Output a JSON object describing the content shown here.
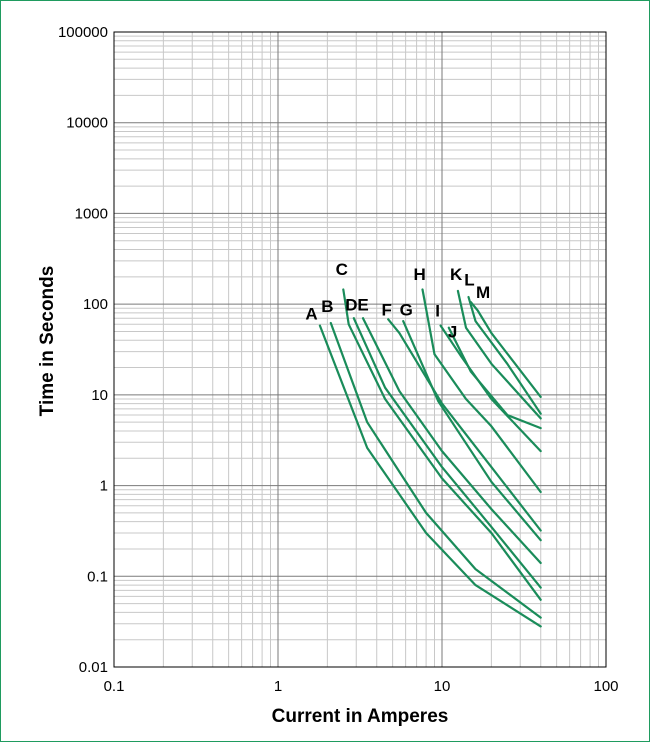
{
  "chart_data": {
    "type": "line",
    "title": "",
    "xlabel": "Current in Amperes",
    "ylabel": "Time in Seconds",
    "x_scale": "log",
    "y_scale": "log",
    "xlim": [
      0.1,
      100
    ],
    "ylim": [
      0.01,
      100000
    ],
    "x_ticks": [
      {
        "value": 0.1,
        "label": "0.1"
      },
      {
        "value": 1,
        "label": "1"
      },
      {
        "value": 10,
        "label": "10"
      },
      {
        "value": 100,
        "label": "100"
      }
    ],
    "y_ticks": [
      {
        "value": 0.01,
        "label": "0.01"
      },
      {
        "value": 0.1,
        "label": "0.1"
      },
      {
        "value": 1,
        "label": "1"
      },
      {
        "value": 10,
        "label": "10"
      },
      {
        "value": 100,
        "label": "100"
      },
      {
        "value": 1000,
        "label": "1000"
      },
      {
        "value": 10000,
        "label": "10000"
      },
      {
        "value": 100000,
        "label": "100000"
      }
    ],
    "grid": true,
    "line_color": "#1a8c5a",
    "series": [
      {
        "name": "A",
        "points": [
          [
            1.8,
            58
          ],
          [
            3.5,
            2.6
          ],
          [
            8,
            0.3
          ],
          [
            16,
            0.08
          ],
          [
            40,
            0.028
          ]
        ]
      },
      {
        "name": "B",
        "points": [
          [
            2.1,
            62
          ],
          [
            3.5,
            5
          ],
          [
            8,
            0.5
          ],
          [
            16,
            0.12
          ],
          [
            40,
            0.035
          ]
        ]
      },
      {
        "name": "C",
        "points": [
          [
            2.5,
            145
          ],
          [
            2.7,
            60
          ],
          [
            4.5,
            9
          ],
          [
            10,
            1.2
          ],
          [
            20,
            0.3
          ],
          [
            40,
            0.055
          ]
        ]
      },
      {
        "name": "D",
        "points": [
          [
            2.9,
            70
          ],
          [
            4.5,
            12
          ],
          [
            10,
            1.6
          ],
          [
            20,
            0.35
          ],
          [
            40,
            0.075
          ]
        ]
      },
      {
        "name": "E",
        "points": [
          [
            3.3,
            70
          ],
          [
            5.5,
            11
          ],
          [
            10,
            2.4
          ],
          [
            20,
            0.55
          ],
          [
            40,
            0.14
          ]
        ]
      },
      {
        "name": "F",
        "points": [
          [
            4.7,
            68
          ],
          [
            5.5,
            48
          ],
          [
            10,
            8
          ],
          [
            20,
            1.6
          ],
          [
            40,
            0.32
          ]
        ]
      },
      {
        "name": "G",
        "points": [
          [
            5.8,
            65
          ],
          [
            9.5,
            8.5
          ],
          [
            20,
            1.1
          ],
          [
            40,
            0.25
          ]
        ]
      },
      {
        "name": "H",
        "points": [
          [
            7.6,
            145
          ],
          [
            9,
            28
          ],
          [
            14,
            9
          ],
          [
            20,
            4.5
          ],
          [
            40,
            0.85
          ]
        ]
      },
      {
        "name": "I",
        "points": [
          [
            9.8,
            58
          ],
          [
            13,
            27
          ],
          [
            20,
            9
          ],
          [
            40,
            2.4
          ]
        ]
      },
      {
        "name": "J",
        "points": [
          [
            11,
            55
          ],
          [
            15,
            18
          ],
          [
            25,
            6
          ],
          [
            40,
            4.3
          ]
        ]
      },
      {
        "name": "K",
        "points": [
          [
            12.5,
            140
          ],
          [
            14,
            55
          ],
          [
            20,
            22
          ],
          [
            40,
            5.5
          ]
        ]
      },
      {
        "name": "L",
        "points": [
          [
            14.5,
            120
          ],
          [
            16,
            65
          ],
          [
            25,
            22
          ],
          [
            40,
            6.2
          ]
        ]
      },
      {
        "name": "M",
        "points": [
          [
            15,
            105
          ],
          [
            16.5,
            85
          ],
          [
            20,
            48
          ],
          [
            40,
            9.5
          ]
        ]
      }
    ],
    "annotations": [
      {
        "text": "A",
        "x": 1.6,
        "y": 68
      },
      {
        "text": "B",
        "x": 2.0,
        "y": 82
      },
      {
        "text": "C",
        "x": 2.45,
        "y": 210
      },
      {
        "text": "D",
        "x": 2.8,
        "y": 85
      },
      {
        "text": "E",
        "x": 3.3,
        "y": 85
      },
      {
        "text": "F",
        "x": 4.6,
        "y": 75
      },
      {
        "text": "G",
        "x": 6.05,
        "y": 75
      },
      {
        "text": "H",
        "x": 7.3,
        "y": 185
      },
      {
        "text": "I",
        "x": 9.4,
        "y": 73
      },
      {
        "text": "J",
        "x": 11.6,
        "y": 43
      },
      {
        "text": "K",
        "x": 12.2,
        "y": 185
      },
      {
        "text": "L",
        "x": 14.7,
        "y": 160
      },
      {
        "text": "M",
        "x": 17.8,
        "y": 117
      }
    ]
  }
}
